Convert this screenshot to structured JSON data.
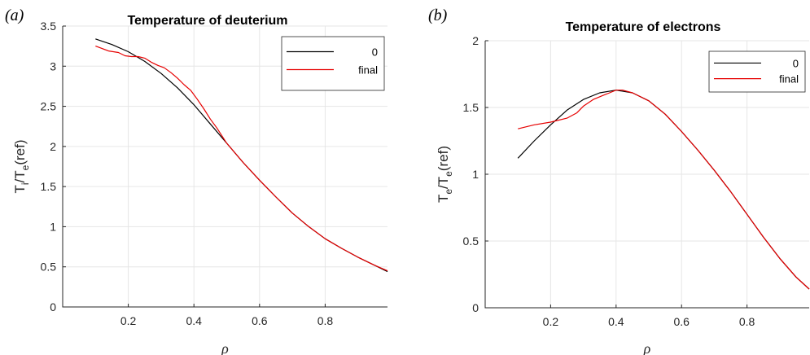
{
  "chart_data": [
    {
      "panel_label": "(a)",
      "type": "line",
      "title": "Temperature of deuterium",
      "xlabel": "ρ",
      "ylabel": {
        "main": "T",
        "sub1": "i",
        "mid": "/T",
        "sub2": "e",
        "tail": "(ref)"
      },
      "xlim": [
        0.0,
        0.99
      ],
      "ylim": [
        0,
        3.5
      ],
      "xticks": [
        0.2,
        0.4,
        0.6,
        0.8
      ],
      "xtick_labels": [
        "0.2",
        "0.4",
        "0.6",
        "0.8"
      ],
      "yticks": [
        0,
        0.5,
        1,
        1.5,
        2,
        2.5,
        3,
        3.5
      ],
      "ytick_labels": [
        "0",
        "0.5",
        "1",
        "1.5",
        "2",
        "2.5",
        "3",
        "3.5"
      ],
      "grid": true,
      "legend_position": "top-right",
      "series": [
        {
          "name": "0",
          "color": "#000000",
          "x": [
            0.1,
            0.15,
            0.2,
            0.25,
            0.3,
            0.35,
            0.4,
            0.45,
            0.5,
            0.55,
            0.6,
            0.65,
            0.7,
            0.75,
            0.8,
            0.85,
            0.9,
            0.95,
            0.99
          ],
          "y": [
            3.34,
            3.27,
            3.18,
            3.06,
            2.91,
            2.73,
            2.52,
            2.28,
            2.04,
            1.8,
            1.58,
            1.37,
            1.17,
            1.0,
            0.85,
            0.73,
            0.62,
            0.52,
            0.44
          ]
        },
        {
          "name": "final",
          "color": "#e60000",
          "x": [
            0.1,
            0.12,
            0.14,
            0.17,
            0.19,
            0.21,
            0.23,
            0.25,
            0.27,
            0.29,
            0.31,
            0.33,
            0.35,
            0.37,
            0.39,
            0.41,
            0.43,
            0.45,
            0.47,
            0.5,
            0.55,
            0.6,
            0.65,
            0.7,
            0.75,
            0.8,
            0.85,
            0.9,
            0.95,
            0.99
          ],
          "y": [
            3.25,
            3.22,
            3.19,
            3.17,
            3.13,
            3.12,
            3.12,
            3.1,
            3.05,
            3.01,
            2.98,
            2.92,
            2.85,
            2.77,
            2.7,
            2.59,
            2.47,
            2.34,
            2.23,
            2.04,
            1.8,
            1.58,
            1.37,
            1.17,
            1.0,
            0.85,
            0.73,
            0.62,
            0.52,
            0.45
          ]
        }
      ]
    },
    {
      "panel_label": "(b)",
      "type": "line",
      "title": "Temperature of electrons",
      "xlabel": "ρ",
      "ylabel": {
        "main": "T",
        "sub1": "e",
        "mid": "/T",
        "sub2": "e",
        "tail": "(ref)"
      },
      "xlim": [
        0.0,
        0.99
      ],
      "ylim": [
        0,
        2
      ],
      "xticks": [
        0.2,
        0.4,
        0.6,
        0.8
      ],
      "xtick_labels": [
        "0.2",
        "0.4",
        "0.6",
        "0.8"
      ],
      "yticks": [
        0,
        0.5,
        1,
        1.5,
        2
      ],
      "ytick_labels": [
        "0",
        "0.5",
        "1",
        "1.5",
        "2"
      ],
      "grid": true,
      "legend_position": "top-right",
      "series": [
        {
          "name": "0",
          "color": "#000000",
          "x": [
            0.1,
            0.15,
            0.2,
            0.25,
            0.3,
            0.35,
            0.4,
            0.45,
            0.5,
            0.55,
            0.6,
            0.65,
            0.7,
            0.75,
            0.8,
            0.85,
            0.9,
            0.95,
            0.99
          ],
          "y": [
            1.12,
            1.25,
            1.37,
            1.48,
            1.56,
            1.61,
            1.63,
            1.61,
            1.55,
            1.45,
            1.32,
            1.18,
            1.03,
            0.87,
            0.7,
            0.53,
            0.37,
            0.23,
            0.14
          ]
        },
        {
          "name": "final",
          "color": "#e60000",
          "x": [
            0.1,
            0.15,
            0.2,
            0.25,
            0.28,
            0.3,
            0.33,
            0.36,
            0.38,
            0.4,
            0.42,
            0.45,
            0.5,
            0.55,
            0.6,
            0.65,
            0.7,
            0.75,
            0.8,
            0.85,
            0.9,
            0.95,
            0.99
          ],
          "y": [
            1.34,
            1.37,
            1.39,
            1.42,
            1.46,
            1.51,
            1.56,
            1.59,
            1.61,
            1.63,
            1.63,
            1.61,
            1.55,
            1.45,
            1.32,
            1.18,
            1.03,
            0.87,
            0.7,
            0.53,
            0.37,
            0.23,
            0.14
          ]
        }
      ]
    }
  ]
}
